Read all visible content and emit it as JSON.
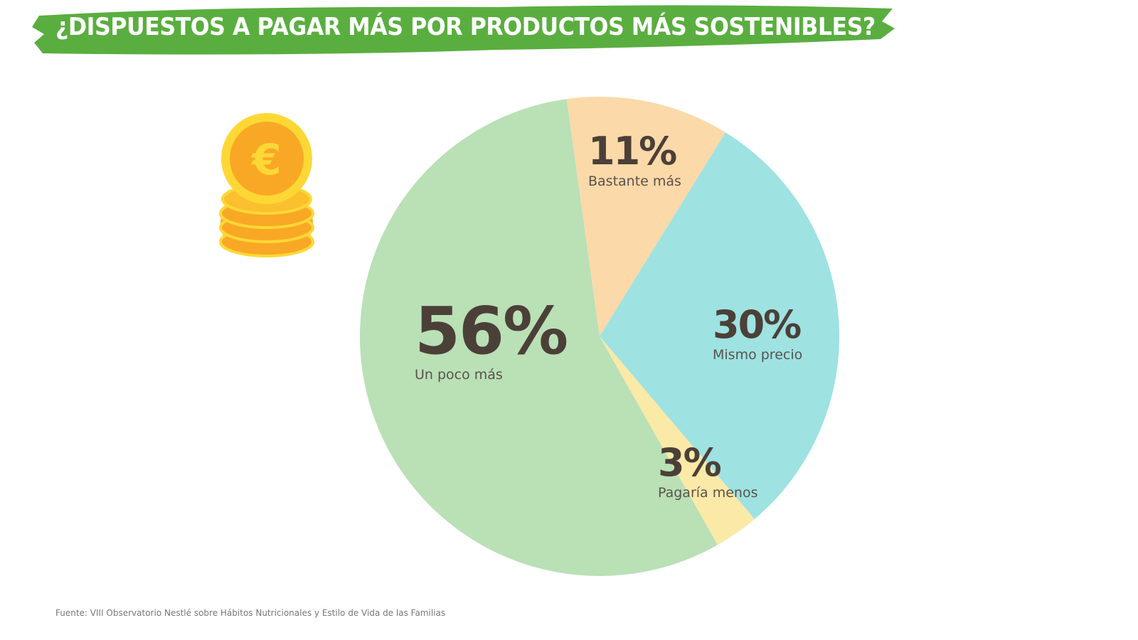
{
  "title": "¿DISPUESTOS A PAGAR MÁS POR PRODUCTOS MÁS SOSTENIBLES?",
  "source": "Fuente: VIII Observatorio Nestlé sobre Hábitos Nutricionales y Estilo de Vida de las Familias",
  "colors": {
    "banner": "#5aae3f",
    "text": "#4b4038"
  },
  "icon": "euro-coins-icon",
  "chart_data": {
    "type": "pie",
    "title": "¿DISPUESTOS A PAGAR MÁS POR PRODUCTOS MÁS SOSTENIBLES?",
    "start_order": [
      "Bastante más",
      "Mismo precio",
      "Pagaría menos",
      "Un poco más"
    ],
    "slices": [
      {
        "label": "Un poco más",
        "value": 56,
        "display": "56%",
        "color": "#bae0b6"
      },
      {
        "label": "Bastante más",
        "value": 11,
        "display": "11%",
        "color": "#fbd9a9"
      },
      {
        "label": "Mismo precio",
        "value": 30,
        "display": "30%",
        "color": "#9ee2e2"
      },
      {
        "label": "Pagaría menos",
        "value": 3,
        "display": "3%",
        "color": "#fbe9a7"
      }
    ]
  }
}
